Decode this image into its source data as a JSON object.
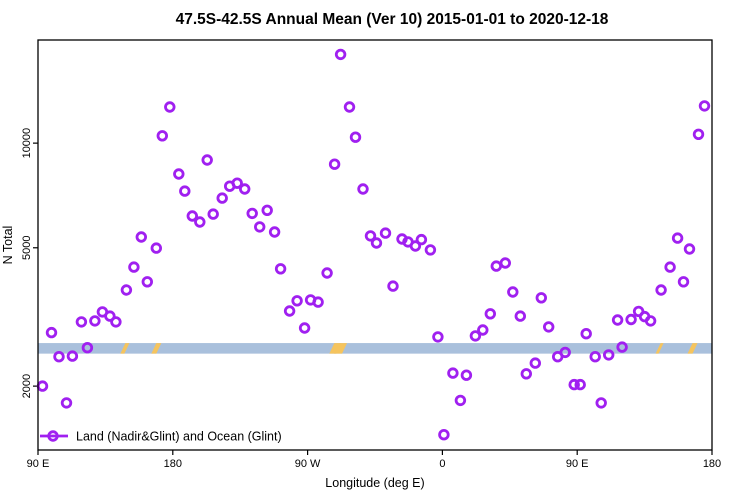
{
  "colors": {
    "points": "#A020F0",
    "ocean_band": "#A9C0DC",
    "land_mark": "#F5C45E",
    "axis": "#000000"
  },
  "legend": {
    "label": "Land (Nadir&Glint) and Ocean (Glint)",
    "position": "bottom-left"
  },
  "chart_data": {
    "type": "scatter",
    "title": "47.5S-42.5S Annual Mean (Ver 10)   2015-01-01 to 2020-12-18",
    "xlabel": "Longitude (deg E)",
    "ylabel": "N Total",
    "y_scale": "log",
    "grid": "off",
    "ylim": [
      1310,
      19800
    ],
    "x_axis": {
      "deg_start": 90,
      "deg_end": 540,
      "ticks": [
        {
          "deg": 90,
          "label": "90 E"
        },
        {
          "deg": 180,
          "label": "180"
        },
        {
          "deg": 270,
          "label": "90 W"
        },
        {
          "deg": 360,
          "label": "0"
        },
        {
          "deg": 450,
          "label": "90 E"
        },
        {
          "deg": 540,
          "label": "180"
        }
      ]
    },
    "y_axis": {
      "top_value": 19800,
      "bottom_value": 1310,
      "ticks": [
        {
          "value": 2000,
          "label": "2000"
        },
        {
          "value": 5000,
          "label": "5000"
        },
        {
          "value": 10000,
          "label": "10000"
        }
      ]
    },
    "ocean_band": {
      "ymin": 2480,
      "ymax": 2660
    },
    "land_marks": [
      {
        "deg": 148,
        "w": 4
      },
      {
        "deg": 169,
        "w": 5
      },
      {
        "deg": 288.5,
        "w": 7
      },
      {
        "deg": 292,
        "w": 8
      },
      {
        "deg": 505,
        "w": 3
      },
      {
        "deg": 527,
        "w": 5
      }
    ],
    "series_name": "Land (Nadir&Glint) and Ocean (Glint)",
    "points": [
      [
        93,
        2000
      ],
      [
        99,
        2850
      ],
      [
        104,
        2430
      ],
      [
        109,
        1790
      ],
      [
        113,
        2440
      ],
      [
        119,
        3060
      ],
      [
        123,
        2580
      ],
      [
        128,
        3080
      ],
      [
        133,
        3270
      ],
      [
        138,
        3180
      ],
      [
        142,
        3060
      ],
      [
        149,
        3780
      ],
      [
        154,
        4400
      ],
      [
        159,
        5370
      ],
      [
        163,
        3990
      ],
      [
        169,
        4990
      ],
      [
        173,
        10500
      ],
      [
        178,
        12700
      ],
      [
        184,
        8150
      ],
      [
        188,
        7280
      ],
      [
        193,
        6170
      ],
      [
        198,
        5930
      ],
      [
        203,
        8940
      ],
      [
        207,
        6250
      ],
      [
        213,
        6950
      ],
      [
        218,
        7520
      ],
      [
        223,
        7670
      ],
      [
        228,
        7380
      ],
      [
        233,
        6280
      ],
      [
        238,
        5740
      ],
      [
        243,
        6410
      ],
      [
        248,
        5550
      ],
      [
        252,
        4350
      ],
      [
        258,
        3290
      ],
      [
        263,
        3520
      ],
      [
        268,
        2940
      ],
      [
        272,
        3540
      ],
      [
        277,
        3490
      ],
      [
        283,
        4230
      ],
      [
        288,
        8700
      ],
      [
        292,
        18000
      ],
      [
        298,
        12700
      ],
      [
        302,
        10400
      ],
      [
        307,
        7380
      ],
      [
        312,
        5410
      ],
      [
        316,
        5160
      ],
      [
        322,
        5510
      ],
      [
        327,
        3880
      ],
      [
        333,
        5300
      ],
      [
        337,
        5200
      ],
      [
        342,
        5060
      ],
      [
        346,
        5280
      ],
      [
        352,
        4930
      ],
      [
        357,
        2770
      ],
      [
        361,
        1450
      ],
      [
        367,
        2180
      ],
      [
        372,
        1820
      ],
      [
        376,
        2150
      ],
      [
        382,
        2790
      ],
      [
        387,
        2900
      ],
      [
        392,
        3230
      ],
      [
        396,
        4430
      ],
      [
        402,
        4520
      ],
      [
        407,
        3730
      ],
      [
        412,
        3180
      ],
      [
        416,
        2170
      ],
      [
        422,
        2330
      ],
      [
        426,
        3590
      ],
      [
        431,
        2960
      ],
      [
        437,
        2430
      ],
      [
        442,
        2500
      ],
      [
        448,
        2020
      ],
      [
        452,
        2020
      ],
      [
        456,
        2830
      ],
      [
        462,
        2430
      ],
      [
        466,
        1790
      ],
      [
        471,
        2460
      ],
      [
        477,
        3100
      ],
      [
        480,
        2590
      ],
      [
        486,
        3110
      ],
      [
        491,
        3280
      ],
      [
        495,
        3170
      ],
      [
        499,
        3080
      ],
      [
        506,
        3780
      ],
      [
        512,
        4400
      ],
      [
        517,
        5330
      ],
      [
        521,
        3990
      ],
      [
        525,
        4960
      ],
      [
        531,
        10600
      ],
      [
        535,
        12800
      ]
    ]
  }
}
